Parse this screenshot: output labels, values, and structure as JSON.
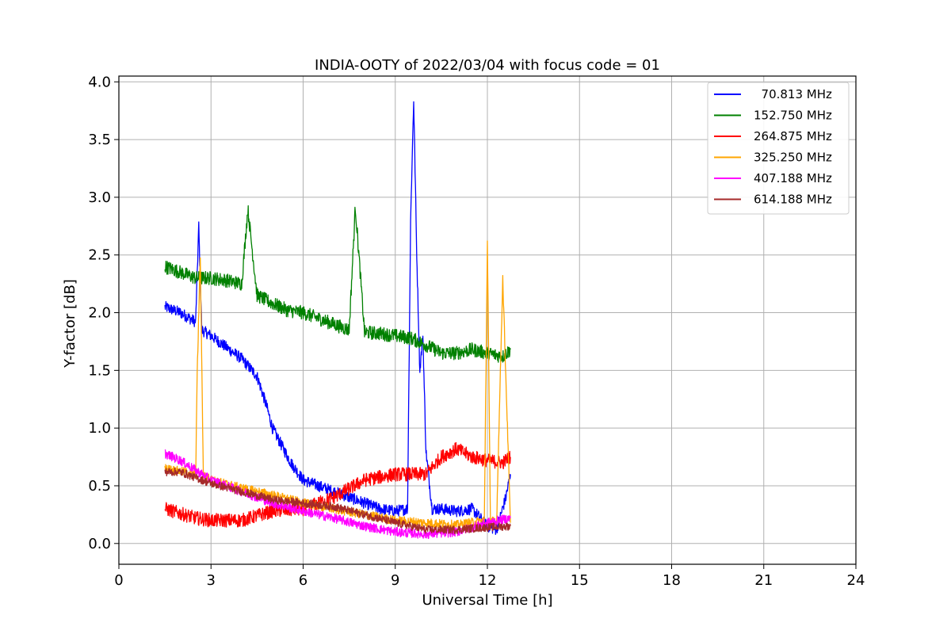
{
  "chart_data": {
    "type": "line",
    "title": "INDIA-OOTY of 2022/03/04 with focus code = 01",
    "xlabel": "Universal Time [h]",
    "ylabel": "Y-factor [dB]",
    "xlim": [
      0,
      24
    ],
    "ylim": [
      -0.18,
      4.05
    ],
    "x_ticks": [
      0,
      3,
      6,
      9,
      12,
      15,
      18,
      21,
      24
    ],
    "x_tick_labels": [
      "0",
      "3",
      "6",
      "9",
      "12",
      "15",
      "18",
      "21",
      "24"
    ],
    "y_ticks": [
      0.0,
      0.5,
      1.0,
      1.5,
      2.0,
      2.5,
      3.0,
      3.5,
      4.0
    ],
    "y_tick_labels": [
      "0.0",
      "0.5",
      "1.0",
      "1.5",
      "2.0",
      "2.5",
      "3.0",
      "3.5",
      "4.0"
    ],
    "grid": true,
    "legend_position": "top-right",
    "noise_amplitude_note": "",
    "series": [
      {
        "name": "  70.813 MHz",
        "color": "#0000ff",
        "noise": 0.05,
        "x": [
          1.5,
          2.0,
          2.5,
          2.6,
          2.7,
          3.0,
          3.5,
          4.0,
          4.5,
          4.8,
          5.0,
          5.3,
          5.6,
          6.0,
          6.5,
          7.0,
          7.5,
          8.0,
          8.5,
          9.0,
          9.4,
          9.5,
          9.6,
          9.7,
          9.8,
          9.9,
          10.0,
          10.2,
          10.5,
          11.0,
          11.5,
          12.0,
          12.3,
          12.6,
          12.75
        ],
        "y": [
          2.05,
          2.0,
          1.92,
          2.75,
          1.85,
          1.8,
          1.7,
          1.6,
          1.45,
          1.2,
          1.0,
          0.85,
          0.7,
          0.55,
          0.5,
          0.45,
          0.4,
          0.35,
          0.3,
          0.28,
          0.3,
          2.8,
          3.85,
          2.5,
          1.5,
          1.8,
          0.8,
          0.3,
          0.3,
          0.28,
          0.3,
          0.15,
          0.12,
          0.4,
          0.6
        ]
      },
      {
        "name": "152.750 MHz",
        "color": "#008000",
        "noise": 0.06,
        "x": [
          1.5,
          2.0,
          2.5,
          3.0,
          3.5,
          4.0,
          4.2,
          4.5,
          5.0,
          5.5,
          6.0,
          6.5,
          7.0,
          7.5,
          7.7,
          8.0,
          8.5,
          9.0,
          9.5,
          10.0,
          10.5,
          11.0,
          11.5,
          12.0,
          12.5,
          12.75
        ],
        "y": [
          2.4,
          2.35,
          2.3,
          2.3,
          2.28,
          2.25,
          2.9,
          2.15,
          2.08,
          2.02,
          2.0,
          1.95,
          1.9,
          1.85,
          2.92,
          1.83,
          1.82,
          1.8,
          1.78,
          1.72,
          1.65,
          1.65,
          1.68,
          1.65,
          1.62,
          1.68
        ]
      },
      {
        "name": "264.875 MHz",
        "color": "#ff0000",
        "noise": 0.06,
        "x": [
          1.5,
          2.5,
          3.0,
          4.0,
          5.0,
          6.0,
          7.0,
          8.0,
          9.0,
          10.0,
          10.5,
          11.0,
          11.5,
          12.0,
          12.5,
          12.75
        ],
        "y": [
          0.3,
          0.22,
          0.2,
          0.2,
          0.28,
          0.3,
          0.4,
          0.55,
          0.6,
          0.6,
          0.75,
          0.82,
          0.75,
          0.72,
          0.7,
          0.75
        ]
      },
      {
        "name": "325.250 MHz",
        "color": "#ffa500",
        "noise": 0.04,
        "x": [
          1.5,
          2.5,
          2.55,
          2.65,
          2.75,
          3.0,
          4.0,
          5.0,
          6.0,
          7.0,
          8.0,
          9.0,
          10.0,
          11.0,
          11.9,
          12.0,
          12.1,
          12.3,
          12.5,
          12.75
        ],
        "y": [
          0.65,
          0.6,
          1.45,
          2.5,
          0.6,
          0.55,
          0.48,
          0.42,
          0.35,
          0.3,
          0.25,
          0.2,
          0.18,
          0.16,
          0.2,
          2.6,
          0.2,
          0.18,
          2.3,
          0.18
        ]
      },
      {
        "name": "407.188 MHz",
        "color": "#ff00ff",
        "noise": 0.04,
        "x": [
          1.5,
          2.0,
          3.0,
          4.0,
          5.0,
          6.0,
          7.0,
          8.0,
          9.0,
          10.0,
          11.0,
          12.0,
          12.75
        ],
        "y": [
          0.78,
          0.72,
          0.55,
          0.45,
          0.35,
          0.28,
          0.22,
          0.15,
          0.1,
          0.08,
          0.1,
          0.18,
          0.22
        ]
      },
      {
        "name": "614.188 MHz",
        "color": "#a52a2a",
        "noise": 0.035,
        "x": [
          1.5,
          2.0,
          3.0,
          4.0,
          5.0,
          6.0,
          7.0,
          8.0,
          9.0,
          10.0,
          11.0,
          12.0,
          12.75
        ],
        "y": [
          0.62,
          0.62,
          0.52,
          0.45,
          0.38,
          0.35,
          0.32,
          0.25,
          0.18,
          0.12,
          0.12,
          0.14,
          0.15
        ]
      }
    ]
  }
}
